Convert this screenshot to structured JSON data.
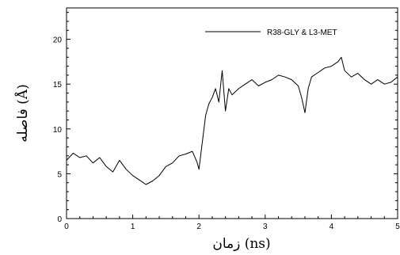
{
  "chart_data": {
    "type": "line",
    "xlabel": "زمان (ns)",
    "ylabel": "فاصله (Å)",
    "xlim": [
      0,
      5
    ],
    "ylim": [
      0,
      23.5
    ],
    "xticks": [
      0,
      1,
      2,
      3,
      4,
      5
    ],
    "xtick_labels": [
      "0",
      "1",
      "2",
      "3",
      "4",
      "5"
    ],
    "yticks": [
      0,
      5,
      10,
      15,
      20
    ],
    "ytick_labels": [
      "0",
      "5",
      "10",
      "15",
      "20"
    ],
    "grid": false,
    "legend_position": "top-right",
    "series": [
      {
        "name": "R38-GLY & L3-MET",
        "color": "#000000",
        "x": [
          0.0,
          0.1,
          0.2,
          0.3,
          0.4,
          0.5,
          0.6,
          0.7,
          0.8,
          0.9,
          1.0,
          1.1,
          1.2,
          1.3,
          1.4,
          1.5,
          1.6,
          1.7,
          1.8,
          1.9,
          1.97,
          2.0,
          2.05,
          2.1,
          2.15,
          2.2,
          2.25,
          2.3,
          2.35,
          2.4,
          2.45,
          2.5,
          2.6,
          2.7,
          2.8,
          2.9,
          3.0,
          3.1,
          3.2,
          3.3,
          3.4,
          3.5,
          3.55,
          3.6,
          3.65,
          3.7,
          3.8,
          3.9,
          4.0,
          4.1,
          4.15,
          4.2,
          4.3,
          4.4,
          4.5,
          4.6,
          4.7,
          4.8,
          4.9,
          5.0
        ],
        "y": [
          6.5,
          7.3,
          6.8,
          7.0,
          6.2,
          6.8,
          5.8,
          5.2,
          6.5,
          5.5,
          4.8,
          4.3,
          3.8,
          4.2,
          4.8,
          5.8,
          6.2,
          7.0,
          7.2,
          7.5,
          6.3,
          5.5,
          8.5,
          11.5,
          12.8,
          13.5,
          14.5,
          13.0,
          16.5,
          12.0,
          14.5,
          13.8,
          14.5,
          15.0,
          15.5,
          14.8,
          15.2,
          15.5,
          16.0,
          15.8,
          15.5,
          14.8,
          13.5,
          11.8,
          14.5,
          15.8,
          16.3,
          16.8,
          17.0,
          17.5,
          18.0,
          16.5,
          15.8,
          16.2,
          15.5,
          15.0,
          15.5,
          15.0,
          15.2,
          15.8
        ]
      }
    ]
  }
}
